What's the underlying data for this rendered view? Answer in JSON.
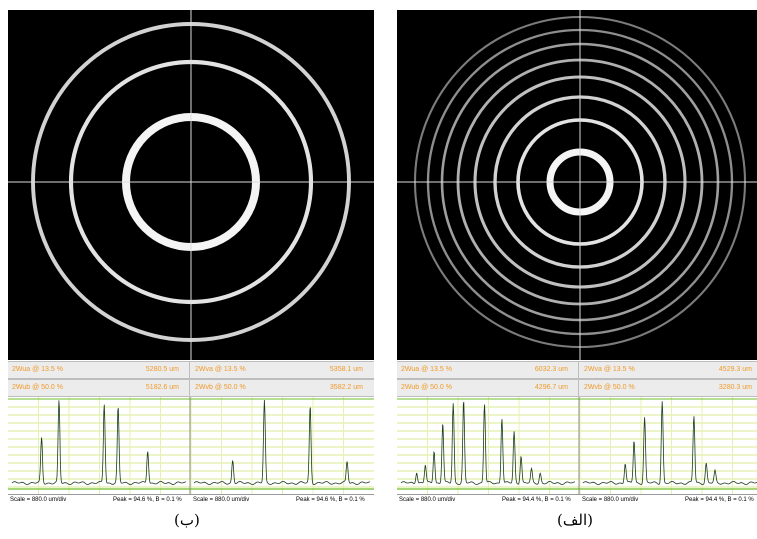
{
  "panels": [
    {
      "id": "b",
      "caption": "(ب)",
      "rings": [
        65,
        120,
        158
      ],
      "readout": {
        "row1": {
          "left_label": "2Wua @ 13.5 %",
          "left_value": "5280.5 um",
          "right_label": "2Wva @ 13.5 %",
          "right_value": "5358.1 um"
        },
        "row2": {
          "left_label": "2Wub @ 50.0 %",
          "left_value": "5182.6 um",
          "right_label": "2Wvb @ 50.0 %",
          "right_value": "3582.2 um"
        }
      },
      "footer": {
        "scale": "Scale = 880.0 um/div",
        "peak": "Peak = 94.6 %, B = 0.1 %"
      },
      "profile_left_peaks": [
        [
          0.17,
          0.55
        ],
        [
          0.27,
          1.0
        ],
        [
          0.53,
          0.97
        ],
        [
          0.61,
          0.92
        ],
        [
          0.78,
          0.4
        ]
      ],
      "profile_right_peaks": [
        [
          0.22,
          0.28
        ],
        [
          0.4,
          1.0
        ],
        [
          0.66,
          0.94
        ],
        [
          0.87,
          0.26
        ]
      ]
    },
    {
      "id": "alef",
      "caption": "(الف)",
      "rings": [
        30,
        62,
        85,
        105,
        122,
        138,
        152,
        165
      ],
      "readout": {
        "row1": {
          "left_label": "2Wua @ 13.5 %",
          "left_value": "6032.3 um",
          "right_label": "2Wva @ 13.5 %",
          "right_value": "4529.3 um"
        },
        "row2": {
          "left_label": "2Wub @ 50.0 %",
          "left_value": "4296.7 um",
          "right_label": "2Wvb @ 50.0 %",
          "right_value": "3280.3 um"
        }
      },
      "footer": {
        "scale": "Scale = 880.0 um/div",
        "peak": "Peak = 94.4 %, B = 0.1 %"
      },
      "profile_left_peaks": [
        [
          0.09,
          0.14
        ],
        [
          0.14,
          0.22
        ],
        [
          0.19,
          0.4
        ],
        [
          0.24,
          0.74
        ],
        [
          0.3,
          0.97
        ],
        [
          0.36,
          1.0
        ],
        [
          0.48,
          0.97
        ],
        [
          0.58,
          0.8
        ],
        [
          0.65,
          0.62
        ],
        [
          0.69,
          0.34
        ],
        [
          0.75,
          0.16
        ],
        [
          0.8,
          0.12
        ]
      ],
      "profile_right_peaks": [
        [
          0.24,
          0.24
        ],
        [
          0.29,
          0.52
        ],
        [
          0.35,
          0.8
        ],
        [
          0.45,
          1.0
        ],
        [
          0.63,
          0.82
        ],
        [
          0.7,
          0.24
        ],
        [
          0.75,
          0.14
        ]
      ]
    }
  ]
}
